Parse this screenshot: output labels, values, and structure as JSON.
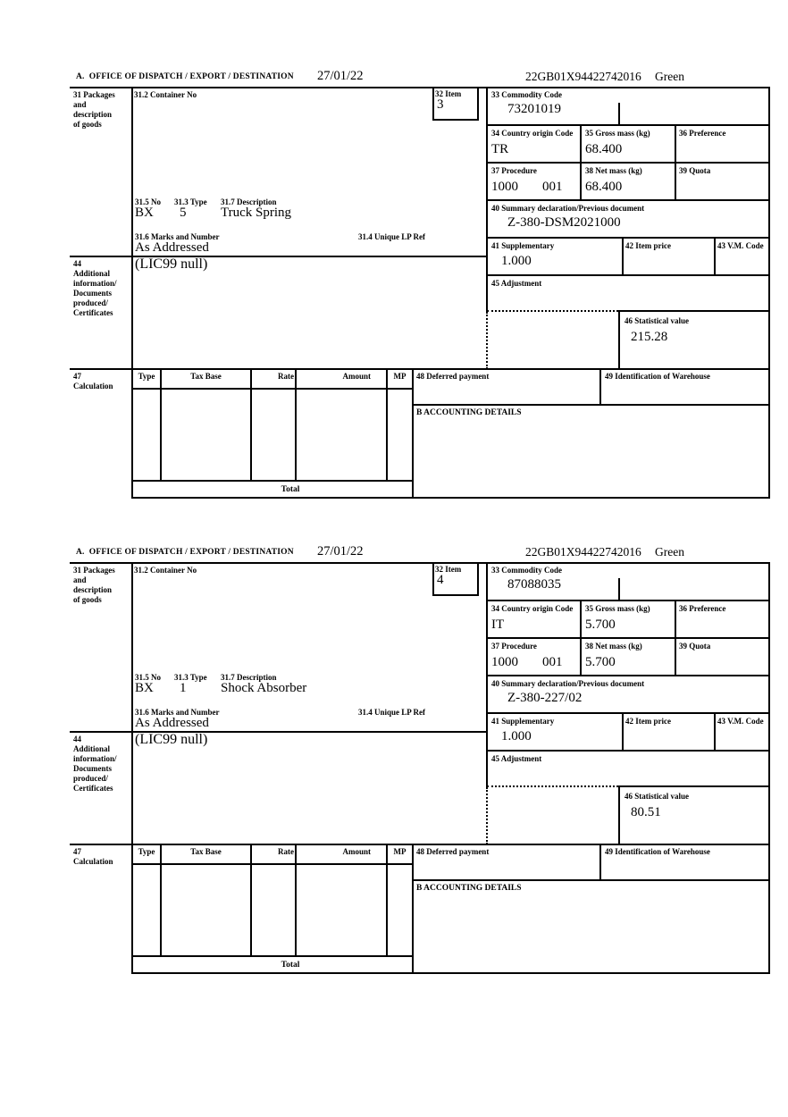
{
  "header": {
    "office_label": "A.  OFFICE OF DISPATCH / EXPORT / DESTINATION",
    "date": "27/01/22",
    "reference": "22GB01X94422742016",
    "status": "Green"
  },
  "labels": {
    "box31": "31 Packages\nand\ndescription\nof goods",
    "box31_2": "31.2 Container No",
    "box32": "32 Item",
    "box33": "33 Commodity Code",
    "box34": "34 Country origin Code",
    "box35": "35 Gross mass (kg)",
    "box36": "36 Preference",
    "box37": "37 Procedure",
    "box38": "38 Net mass (kg)",
    "box39": "39 Quota",
    "box40": "40 Summary declaration/Previous document",
    "box41": "41 Supplementary",
    "box42": "42 Item price",
    "box43": "43 V.M. Code",
    "box44": "44\nAdditional\ninformation/\nDocuments\nproduced/\nCertificates",
    "box45": "45 Adjustment",
    "box46": "46 Statistical value",
    "box47": "47\nCalculation",
    "box48": "48 Deferred payment",
    "box49": "49 Identification of Warehouse",
    "box31_5": "31.5 No",
    "box31_3": "31.3 Type",
    "box31_7": "31.7 Description",
    "box31_6": "31.6 Marks and Number",
    "box31_4": "31.4 Unique LP Ref",
    "accounting": "B ACCOUNTING DETAILS",
    "total": "Total"
  },
  "calc_table": {
    "headers": [
      "Type",
      "Tax Base",
      "Rate",
      "Amount",
      "MP"
    ]
  },
  "items": [
    {
      "item_number": "3",
      "commodity_code": "73201019",
      "country_origin_code": "TR",
      "gross_mass_kg": "68.400",
      "procedure_code": "1000",
      "procedure_suffix": "001",
      "net_mass_kg": "68.400",
      "previous_document": "Z-380-DSM2021000",
      "supplementary_units": "1.000",
      "package_code": "BX",
      "package_type": "5",
      "goods_description": "Truck Spring",
      "marks_and_number": "As Addressed",
      "additional_information": "(LIC99 null)",
      "statistical_value": "215.28"
    },
    {
      "item_number": "4",
      "commodity_code": "87088035",
      "country_origin_code": "IT",
      "gross_mass_kg": "5.700",
      "procedure_code": "1000",
      "procedure_suffix": "001",
      "net_mass_kg": "5.700",
      "previous_document": "Z-380-227/02",
      "supplementary_units": "1.000",
      "package_code": "BX",
      "package_type": "1",
      "goods_description": "Shock Absorber",
      "marks_and_number": "As Addressed",
      "additional_information": "(LIC99 null)",
      "statistical_value": "80.51"
    }
  ]
}
